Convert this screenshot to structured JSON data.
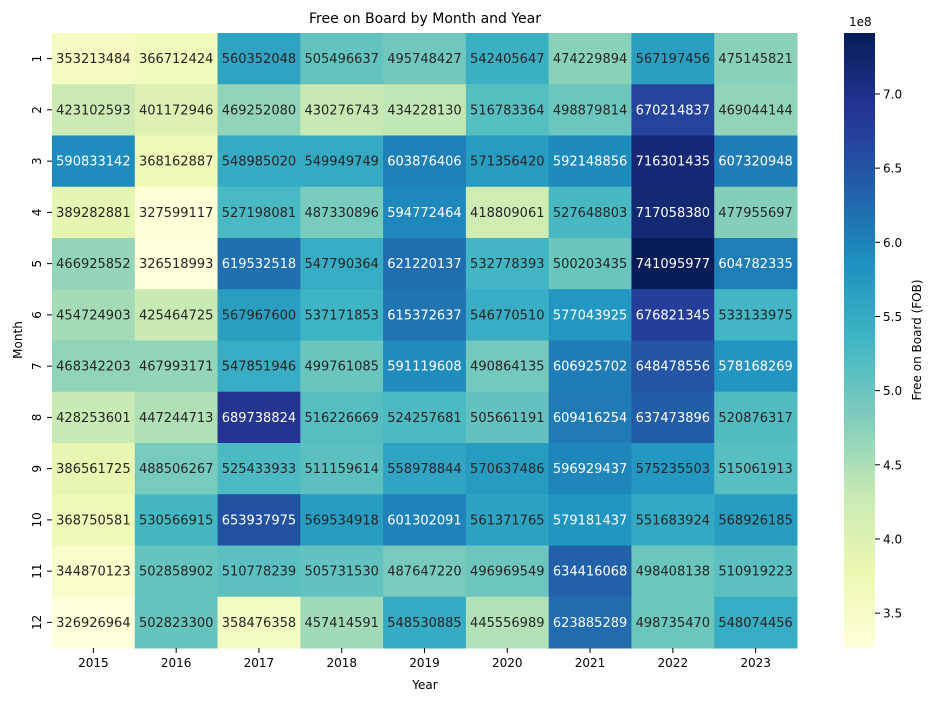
{
  "chart_data": {
    "type": "heatmap",
    "title": "Free on Board by Month and Year",
    "xlabel": "Year",
    "ylabel": "Month",
    "x_categories": [
      "2015",
      "2016",
      "2017",
      "2018",
      "2019",
      "2020",
      "2021",
      "2022",
      "2023"
    ],
    "y_categories": [
      "1",
      "2",
      "3",
      "4",
      "5",
      "6",
      "7",
      "8",
      "9",
      "10",
      "11",
      "12"
    ],
    "values": [
      [
        353213484,
        366712424,
        560352048,
        505496637,
        495748427,
        542405647,
        474229894,
        567197456,
        475145821
      ],
      [
        423102593,
        401172946,
        469252080,
        430276743,
        434228130,
        516783364,
        498879814,
        670214837,
        469044144
      ],
      [
        590833142,
        368162887,
        548985020,
        549949749,
        603876406,
        571356420,
        592148856,
        716301435,
        607320948
      ],
      [
        389282881,
        327599117,
        527198081,
        487330896,
        594772464,
        418809061,
        527648803,
        717058380,
        477955697
      ],
      [
        466925852,
        326518993,
        619532518,
        547790364,
        621220137,
        532778393,
        500203435,
        741095977,
        604782335
      ],
      [
        454724903,
        425464725,
        567967600,
        537171853,
        615372637,
        546770510,
        577043925,
        676821345,
        533133975
      ],
      [
        468342203,
        467993171,
        547851946,
        499761085,
        591119608,
        490864135,
        606925702,
        648478556,
        578168269
      ],
      [
        428253601,
        447244713,
        689738824,
        516226669,
        524257681,
        505661191,
        609416254,
        637473896,
        520876317
      ],
      [
        386561725,
        488506267,
        525433933,
        511159614,
        558978844,
        570637486,
        596929437,
        575235503,
        515061913
      ],
      [
        368750581,
        530566915,
        653937975,
        569534918,
        601302091,
        561371765,
        579181437,
        551683924,
        568926185
      ],
      [
        344870123,
        502858902,
        510778239,
        505731530,
        487647220,
        496969549,
        634416068,
        498408138,
        510919223
      ],
      [
        326926964,
        502823300,
        358476358,
        457414591,
        548530885,
        445556989,
        623885289,
        498735470,
        548074456
      ]
    ],
    "colorbar": {
      "label": "Free on Board (FOB)",
      "exponent_label": "1e8",
      "tick_values": [
        3.5,
        4.0,
        4.5,
        5.0,
        5.5,
        6.0,
        6.5,
        7.0
      ],
      "tick_labels": [
        "3.5",
        "4.0",
        "4.5",
        "5.0",
        "5.5",
        "6.0",
        "6.5",
        "7.0"
      ],
      "scale_multiplier": 100000000,
      "vmin": 326518993,
      "vmax": 741095977
    },
    "colormap": "YlGnBu",
    "colormap_stops": [
      "#ffffd9",
      "#edf8b1",
      "#c7e9b4",
      "#7fcdbb",
      "#41b6c4",
      "#1d91c0",
      "#225ea8",
      "#253494",
      "#081d58"
    ],
    "annotations": true,
    "grid": false
  }
}
